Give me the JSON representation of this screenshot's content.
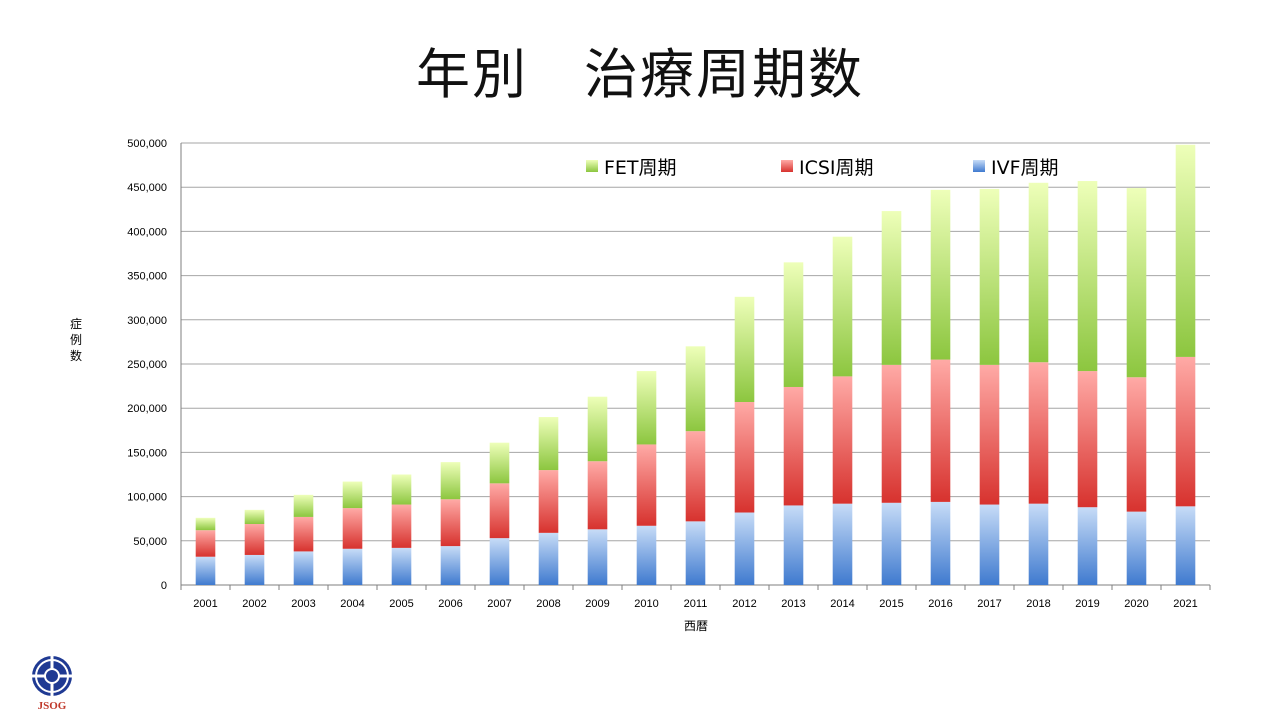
{
  "slide": {
    "title": "年別　治療周期数"
  },
  "logo": {
    "text": "JSOG"
  },
  "colors": {
    "fet": "#92D050",
    "icsi": "#E8413C",
    "ivf": "#4A86D8",
    "grid": "#A6A6A6"
  },
  "chart_data": {
    "type": "bar",
    "stacked": true,
    "title": "年別　治療周期数",
    "xlabel": "西暦",
    "ylabel": "症例数",
    "ylim": [
      0,
      500000
    ],
    "yticks": [
      "0",
      "50,000",
      "100,000",
      "150,000",
      "200,000",
      "250,000",
      "300,000",
      "350,000",
      "400,000",
      "450,000",
      "500,000"
    ],
    "grid": true,
    "legend_position": "top",
    "categories": [
      "2001",
      "2002",
      "2003",
      "2004",
      "2005",
      "2006",
      "2007",
      "2008",
      "2009",
      "2010",
      "2011",
      "2012",
      "2013",
      "2014",
      "2015",
      "2016",
      "2017",
      "2018",
      "2019",
      "2020",
      "2021"
    ],
    "series": [
      {
        "name": "IVF周期",
        "key": "ivf",
        "values": [
          32000,
          34000,
          38000,
          41000,
          42000,
          44000,
          53000,
          59000,
          63000,
          67000,
          72000,
          82000,
          90000,
          92000,
          93000,
          94000,
          91000,
          92000,
          88000,
          83000,
          89000
        ]
      },
      {
        "name": "ICSI周期",
        "key": "icsi",
        "values": [
          30000,
          35000,
          39000,
          46000,
          49000,
          53000,
          62000,
          71000,
          77000,
          92000,
          102000,
          125000,
          134000,
          144000,
          156000,
          161000,
          158000,
          160000,
          154000,
          152000,
          169000
        ]
      },
      {
        "name": "FET周期",
        "key": "fet",
        "values": [
          14000,
          16000,
          25000,
          30000,
          34000,
          42000,
          46000,
          60000,
          73000,
          83000,
          96000,
          119000,
          141000,
          158000,
          174000,
          192000,
          199000,
          203000,
          215000,
          214000,
          240000
        ]
      }
    ],
    "legend_order": [
      "fet",
      "icsi",
      "ivf"
    ]
  }
}
